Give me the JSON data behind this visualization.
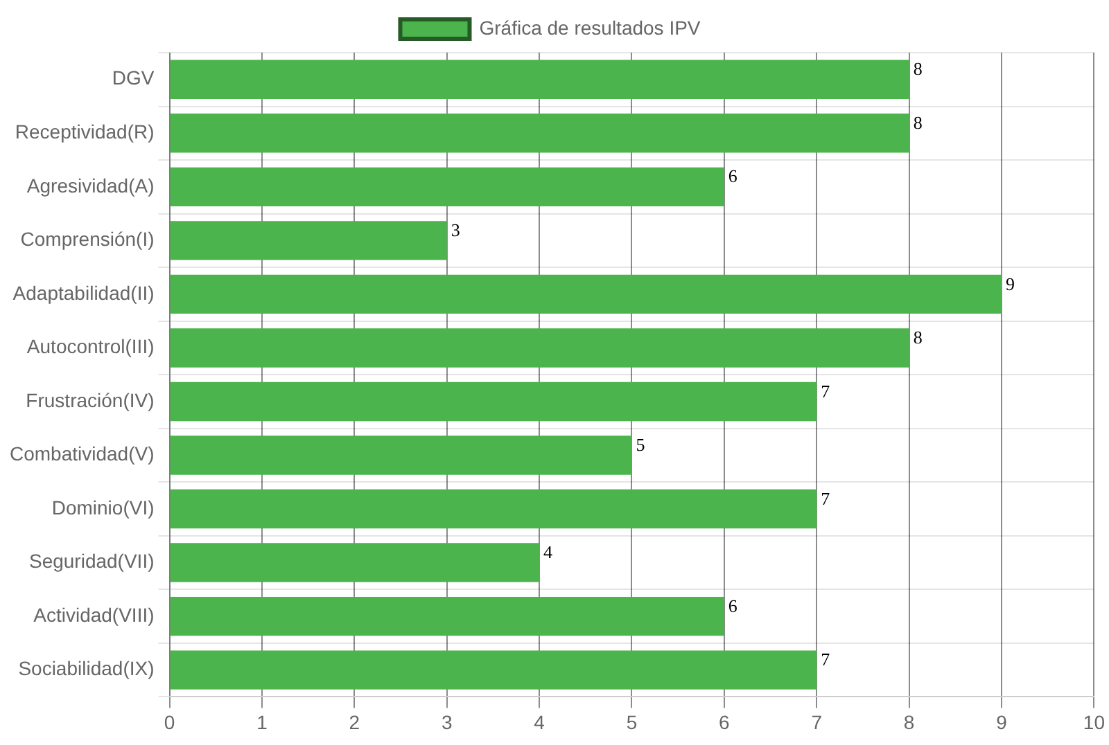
{
  "chart_data": {
    "type": "bar",
    "orientation": "horizontal",
    "categories": [
      "DGV",
      "Receptividad(R)",
      "Agresividad(A)",
      "Comprensión(I)",
      "Adaptabilidad(II)",
      "Autocontrol(III)",
      "Frustración(IV)",
      "Combatividad(V)",
      "Dominio(VI)",
      "Seguridad(VII)",
      "Actividad(VIII)",
      "Sociabilidad(IX)"
    ],
    "series": [
      {
        "name": "Gráfica de resultados IPV",
        "color": "#4cb44c",
        "values": [
          8,
          8,
          6,
          3,
          9,
          8,
          7,
          5,
          7,
          4,
          6,
          7
        ]
      }
    ],
    "xlim": [
      0,
      10
    ],
    "xticks": [
      0,
      1,
      2,
      3,
      4,
      5,
      6,
      7,
      8,
      9,
      10
    ],
    "grid": true,
    "legend": "top",
    "data_labels": true
  }
}
